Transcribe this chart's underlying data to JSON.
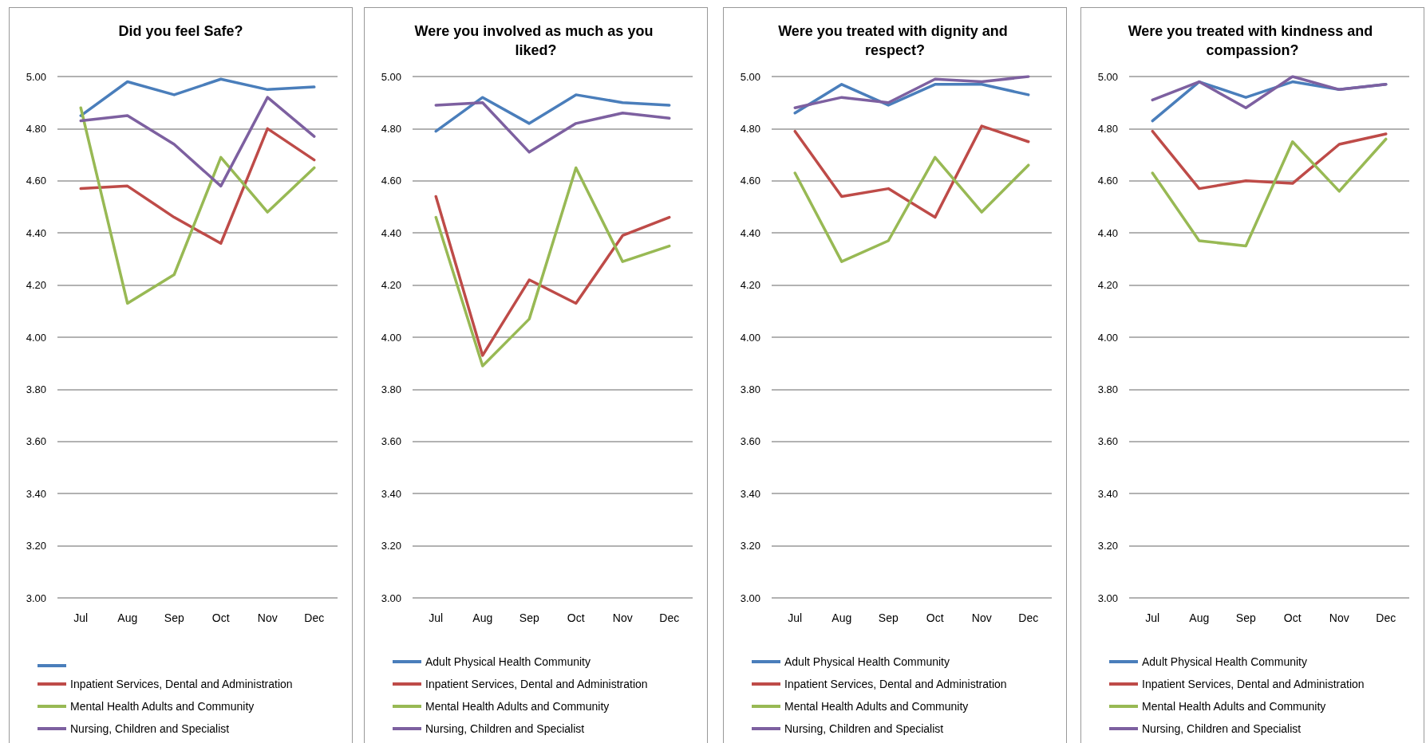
{
  "chart_data": [
    {
      "type": "line",
      "title": "Did you feel Safe?",
      "categories": [
        "Jul",
        "Aug",
        "Sep",
        "Oct",
        "Nov",
        "Dec"
      ],
      "ylim": [
        3,
        5
      ],
      "yticks": [
        {
          "value": 3,
          "label": "3.00"
        },
        {
          "value": 3.2,
          "label": "3.20"
        },
        {
          "value": 3.4,
          "label": "3.40"
        },
        {
          "value": 3.6,
          "label": "3.60"
        },
        {
          "value": 3.8,
          "label": "3.80"
        },
        {
          "value": 4,
          "label": "4.00"
        },
        {
          "value": 4.2,
          "label": "4.20"
        },
        {
          "value": 4.4,
          "label": "4.40"
        },
        {
          "value": 4.6,
          "label": "4.60"
        },
        {
          "value": 4.8,
          "label": "4.80"
        },
        {
          "value": 5,
          "label": "5.00"
        }
      ],
      "grid": "y",
      "legend": "bottom",
      "marker": "none",
      "line_style": "solid",
      "series": [
        {
          "color": "#4a7ebb",
          "values": [
            4.85,
            4.98,
            4.93,
            4.99,
            4.95,
            4.96
          ]
        },
        {
          "name": "Inpatient Services, Dental and Administration",
          "color": "#be4b48",
          "values": [
            4.57,
            4.58,
            4.46,
            4.36,
            4.8,
            4.68
          ]
        },
        {
          "name": "Mental Health Adults and Community",
          "color": "#98b954",
          "values": [
            4.88,
            4.13,
            4.24,
            4.69,
            4.48,
            4.65
          ]
        },
        {
          "name": "Nursing, Children and Specialist",
          "color": "#7d60a0",
          "values": [
            4.83,
            4.85,
            4.74,
            4.58,
            4.92,
            4.77
          ]
        }
      ]
    },
    {
      "type": "line",
      "title": "Were you involved as much as you liked?",
      "categories": [
        "Jul",
        "Aug",
        "Sep",
        "Oct",
        "Nov",
        "Dec"
      ],
      "ylim": [
        3,
        5
      ],
      "yticks": [
        {
          "value": 3,
          "label": "3.00"
        },
        {
          "value": 3.2,
          "label": "3.20"
        },
        {
          "value": 3.4,
          "label": "3.40"
        },
        {
          "value": 3.6,
          "label": "3.60"
        },
        {
          "value": 3.8,
          "label": "3.80"
        },
        {
          "value": 4,
          "label": "4.00"
        },
        {
          "value": 4.2,
          "label": "4.20"
        },
        {
          "value": 4.4,
          "label": "4.40"
        },
        {
          "value": 4.6,
          "label": "4.60"
        },
        {
          "value": 4.8,
          "label": "4.80"
        },
        {
          "value": 5,
          "label": "5.00"
        }
      ],
      "grid": "y",
      "legend": "bottom",
      "marker": "none",
      "line_style": "solid",
      "series": [
        {
          "name": "Adult Physical Health Community",
          "color": "#4a7ebb",
          "values": [
            4.79,
            4.92,
            4.82,
            4.93,
            4.9,
            4.89
          ]
        },
        {
          "name": "Inpatient Services, Dental and Administration",
          "color": "#be4b48",
          "values": [
            4.54,
            3.93,
            4.22,
            4.13,
            4.39,
            4.46
          ]
        },
        {
          "name": "Mental Health Adults and Community",
          "color": "#98b954",
          "values": [
            4.46,
            3.89,
            4.07,
            4.65,
            4.29,
            4.35
          ]
        },
        {
          "name": "Nursing, Children and Specialist",
          "color": "#7d60a0",
          "values": [
            4.89,
            4.9,
            4.71,
            4.82,
            4.86,
            4.84
          ]
        }
      ]
    },
    {
      "type": "line",
      "title": "Were you treated with dignity and respect?",
      "categories": [
        "Jul",
        "Aug",
        "Sep",
        "Oct",
        "Nov",
        "Dec"
      ],
      "ylim": [
        3,
        5
      ],
      "yticks": [
        {
          "value": 3,
          "label": "3.00"
        },
        {
          "value": 3.2,
          "label": "3.20"
        },
        {
          "value": 3.4,
          "label": "3.40"
        },
        {
          "value": 3.6,
          "label": "3.60"
        },
        {
          "value": 3.8,
          "label": "3.80"
        },
        {
          "value": 4,
          "label": "4.00"
        },
        {
          "value": 4.2,
          "label": "4.20"
        },
        {
          "value": 4.4,
          "label": "4.40"
        },
        {
          "value": 4.6,
          "label": "4.60"
        },
        {
          "value": 4.8,
          "label": "4.80"
        },
        {
          "value": 5,
          "label": "5.00"
        }
      ],
      "grid": "y",
      "legend": "bottom",
      "marker": "none",
      "line_style": "solid",
      "series": [
        {
          "name": "Adult Physical Health Community",
          "color": "#4a7ebb",
          "values": [
            4.86,
            4.97,
            4.89,
            4.97,
            4.97,
            4.93
          ]
        },
        {
          "name": "Inpatient Services, Dental and Administration",
          "color": "#be4b48",
          "values": [
            4.79,
            4.54,
            4.57,
            4.46,
            4.81,
            4.75
          ]
        },
        {
          "name": "Mental Health Adults and Community",
          "color": "#98b954",
          "values": [
            4.63,
            4.29,
            4.37,
            4.69,
            4.48,
            4.66
          ]
        },
        {
          "name": "Nursing, Children and Specialist",
          "color": "#7d60a0",
          "values": [
            4.88,
            4.92,
            4.9,
            4.99,
            4.98,
            5.0
          ]
        }
      ]
    },
    {
      "type": "line",
      "title": "Were you treated with kindness and compassion?",
      "categories": [
        "Jul",
        "Aug",
        "Sep",
        "Oct",
        "Nov",
        "Dec"
      ],
      "ylim": [
        3,
        5
      ],
      "yticks": [
        {
          "value": 3,
          "label": "3.00"
        },
        {
          "value": 3.2,
          "label": "3.20"
        },
        {
          "value": 3.4,
          "label": "3.40"
        },
        {
          "value": 3.6,
          "label": "3.60"
        },
        {
          "value": 3.8,
          "label": "3.80"
        },
        {
          "value": 4,
          "label": "4.00"
        },
        {
          "value": 4.2,
          "label": "4.20"
        },
        {
          "value": 4.4,
          "label": "4.40"
        },
        {
          "value": 4.6,
          "label": "4.60"
        },
        {
          "value": 4.8,
          "label": "4.80"
        },
        {
          "value": 5,
          "label": "5.00"
        }
      ],
      "grid": "y",
      "legend": "bottom",
      "marker": "none",
      "line_style": "solid",
      "series": [
        {
          "name": "Adult Physical Health Community",
          "color": "#4a7ebb",
          "values": [
            4.83,
            4.98,
            4.92,
            4.98,
            4.95,
            4.97
          ]
        },
        {
          "name": "Inpatient Services, Dental and Administration",
          "color": "#be4b48",
          "values": [
            4.79,
            4.57,
            4.6,
            4.59,
            4.74,
            4.78
          ]
        },
        {
          "name": "Mental Health Adults and Community",
          "color": "#98b954",
          "values": [
            4.63,
            4.37,
            4.35,
            4.75,
            4.56,
            4.76
          ]
        },
        {
          "name": "Nursing, Children and Specialist",
          "color": "#7d60a0",
          "values": [
            4.91,
            4.98,
            4.88,
            5.0,
            4.95,
            4.97
          ]
        }
      ]
    }
  ]
}
